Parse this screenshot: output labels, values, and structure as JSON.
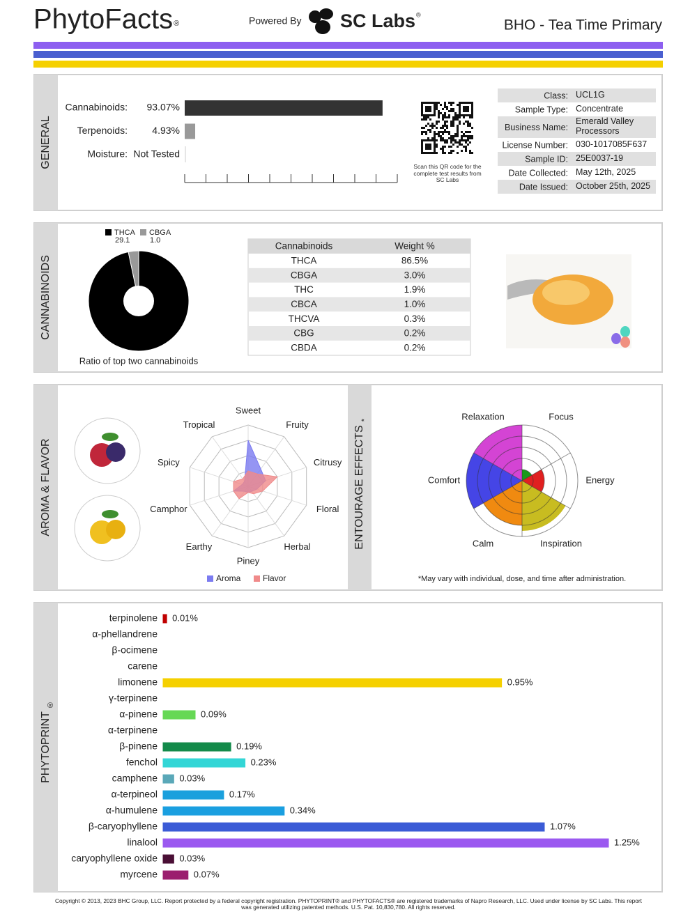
{
  "header": {
    "brand": "PhytoFacts",
    "brand_mark": "®",
    "powered_by": "Powered By",
    "lab": "SC Labs",
    "lab_mark": "®",
    "product": "BHO - Tea Time Primary"
  },
  "general": {
    "title": "GENERAL",
    "chart": {
      "type": "bar",
      "categories": [
        "Cannabinoids:",
        "Terpenoids:",
        "Moisture:"
      ],
      "values": [
        93.07,
        4.93,
        null
      ],
      "value_labels": [
        "93.07%",
        "4.93%",
        "Not Tested"
      ],
      "colors": [
        "#333333",
        "#999999",
        "#999999"
      ],
      "xlim": [
        0,
        100
      ],
      "xticks": [
        0,
        10,
        20,
        30,
        40,
        50,
        60,
        70,
        80,
        90,
        100
      ]
    },
    "qr_caption": "Scan this QR code for the complete test results from SC Labs",
    "info": [
      [
        "Class:",
        "UCL1G"
      ],
      [
        "Sample Type:",
        "Concentrate"
      ],
      [
        "Business Name:",
        "Emerald Valley Processors"
      ],
      [
        "License Number:",
        "030-1017085F637"
      ],
      [
        "Sample ID:",
        "25E0037-19"
      ],
      [
        "Date Collected:",
        "May 12th, 2025"
      ],
      [
        "Date Issued:",
        "October 25th, 2025"
      ]
    ]
  },
  "cannabinoids": {
    "title": "CANNABINOIDS",
    "chart": {
      "type": "pie",
      "categories": [
        "THCA",
        "CBGA"
      ],
      "values": [
        29.1,
        1.0
      ],
      "value_labels": [
        "29.1",
        "1.0"
      ],
      "colors": [
        "#000000",
        "#999999"
      ]
    },
    "caption": "Ratio of top two cannabinoids",
    "table": {
      "header": [
        "Cannabinoids",
        "Weight %"
      ],
      "rows": [
        [
          "THCA",
          "86.5%"
        ],
        [
          "CBGA",
          "3.0%"
        ],
        [
          "THC",
          "1.9%"
        ],
        [
          "CBCA",
          "1.0%"
        ],
        [
          "THCVA",
          "0.3%"
        ],
        [
          "CBG",
          "0.2%"
        ],
        [
          "CBDA",
          "0.2%"
        ]
      ]
    }
  },
  "aroma": {
    "title": "AROMA & FLAVOR",
    "chart": {
      "type": "radar",
      "categories": [
        "Sweet",
        "Fruity",
        "Citrusy",
        "Floral",
        "Herbal",
        "Piney",
        "Earthy",
        "Camphor",
        "Spicy",
        "Tropical"
      ],
      "series": [
        {
          "name": "Aroma",
          "color": "#7b7bf0",
          "values": [
            7.5,
            3.5,
            3,
            1.5,
            1,
            1,
            1,
            2.5,
            1,
            1
          ]
        },
        {
          "name": "Flavor",
          "color": "#f08a8a",
          "values": [
            2.5,
            2.5,
            5,
            2.5,
            1.5,
            1,
            2.5,
            2.5,
            2.5,
            1.5
          ]
        }
      ],
      "rlim": [
        0,
        10
      ],
      "rticks": [
        2.5,
        5,
        7.5,
        10
      ]
    }
  },
  "entourage": {
    "title": "ENTOURAGE EFFECTS",
    "title_mark": "*",
    "chart": {
      "type": "polar",
      "categories": [
        "Focus",
        "Energy",
        "Inspiration",
        "Calm",
        "Comfort",
        "Relaxation"
      ],
      "values": [
        1,
        2,
        4.5,
        4,
        5,
        5
      ],
      "colors": [
        "#1a9a1a",
        "#e02020",
        "#c8bc20",
        "#f08a10",
        "#4545e6",
        "#d444d4"
      ],
      "rlim": [
        0,
        5
      ],
      "rticks": [
        1,
        2,
        3,
        4,
        5
      ]
    },
    "note": "*May vary with individual, dose, and time after administration."
  },
  "phytoprint": {
    "title": "PHYTOPRINT",
    "title_mark": "®",
    "chart": {
      "type": "bar",
      "categories": [
        "terpinolene",
        "α-phellandrene",
        "β-ocimene",
        "carene",
        "limonene",
        "γ-terpinene",
        "α-pinene",
        "α-terpinene",
        "β-pinene",
        "fenchol",
        "camphene",
        "α-terpineol",
        "α-humulene",
        "β-caryophyllene",
        "linalool",
        "caryophyllene oxide",
        "myrcene"
      ],
      "values": [
        0.01,
        0,
        0,
        0,
        0.95,
        0,
        0.09,
        0,
        0.19,
        0.23,
        0.03,
        0.17,
        0.34,
        1.07,
        1.25,
        0.03,
        0.07
      ],
      "value_labels": [
        "0.01%",
        null,
        null,
        null,
        "0.95%",
        null,
        "0.09%",
        null,
        "0.19%",
        "0.23%",
        "0.03%",
        "0.17%",
        "0.34%",
        "1.07%",
        "1.25%",
        "0.03%",
        "0.07%"
      ],
      "colors": [
        "#c00000",
        "#d42a00",
        "#e05000",
        "#d06a00",
        "#f5d000",
        "#b8c800",
        "#66d855",
        "#1e9e40",
        "#138a4a",
        "#33d6d6",
        "#5aa8b8",
        "#1aa0dd",
        "#1a9fe0",
        "#3b5bd6",
        "#9b59f0",
        "#4a0f35",
        "#9b1e6e"
      ],
      "xlim": [
        0,
        1.25
      ]
    }
  },
  "footer": [
    "Copyright © 2013, 2023 BHC Group, LLC. Report protected by a federal copyright registration. PHYTOPRINT® and PHYTOFACTS® are registered trademarks of Napro Research, LLC. Used under license by SC Labs. This report",
    "was generated utilizing patented methods. U.S. Pat. 10,830,780. All rights reserved."
  ]
}
